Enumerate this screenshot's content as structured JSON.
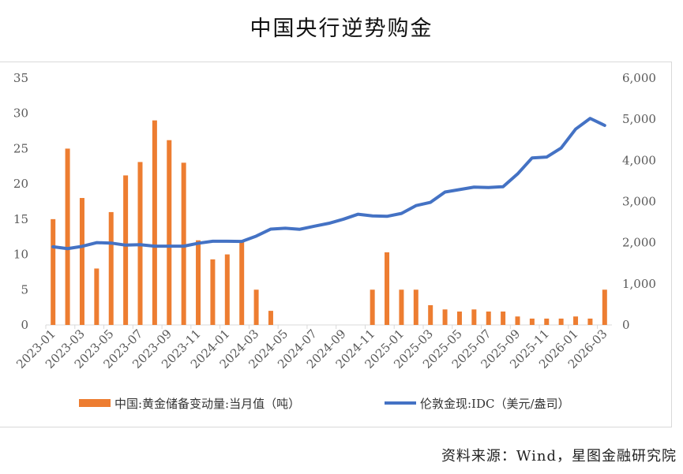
{
  "title": "中国央行逆势购金",
  "source": "资料来源：Wind，星图金融研究院",
  "chart_data": {
    "type": "bar+line",
    "title": "中国央行逆势购金",
    "x": [
      "2023-01",
      "2023-02",
      "2023-03",
      "2023-04",
      "2023-05",
      "2023-06",
      "2023-07",
      "2023-08",
      "2023-09",
      "2023-10",
      "2023-11",
      "2023-12",
      "2024-01",
      "2024-02",
      "2024-03",
      "2024-04",
      "2024-05",
      "2024-06",
      "2024-07",
      "2024-08",
      "2024-09",
      "2024-10",
      "2024-11",
      "2024-12",
      "2025-01",
      "2025-02",
      "2025-03",
      "2025-04",
      "2025-05",
      "2025-06",
      "2025-07",
      "2025-08",
      "2025-09",
      "2025-10",
      "2025-11",
      "2025-12",
      "2026-01",
      "2026-02",
      "2026-03"
    ],
    "x_tick_labels": [
      "2023-01",
      "2023-03",
      "2023-05",
      "2023-07",
      "2023-09",
      "2023-11",
      "2024-01",
      "2024-03",
      "2024-05",
      "2024-07",
      "2024-09",
      "2024-11",
      "2025-01",
      "2025-03",
      "2025-05",
      "2025-07",
      "2025-09",
      "2025-11",
      "2026-01",
      "2026-03"
    ],
    "series": [
      {
        "name": "中国:黄金储备变动量:当月值（吨）",
        "type": "bar",
        "axis": "left",
        "color": "#ED7D31",
        "values": [
          15,
          25,
          18,
          8,
          16,
          21.2,
          23.1,
          29,
          26.2,
          23,
          12,
          9.3,
          10,
          12,
          5,
          2,
          0,
          0,
          0,
          0,
          0,
          0,
          5,
          10.3,
          5,
          5,
          2.8,
          2.2,
          1.9,
          2.2,
          1.9,
          1.9,
          1.2,
          0.9,
          0.9,
          0.9,
          1.2,
          0.9,
          5
        ]
      },
      {
        "name": "伦敦金现:IDC（美元/盎司）",
        "type": "line",
        "axis": "right",
        "color": "#4472C4",
        "values": [
          1900,
          1855,
          1910,
          2000,
          1990,
          1940,
          1950,
          1915,
          1915,
          1915,
          1985,
          2035,
          2035,
          2030,
          2160,
          2330,
          2350,
          2325,
          2400,
          2470,
          2570,
          2690,
          2650,
          2640,
          2710,
          2900,
          2980,
          3230,
          3290,
          3350,
          3340,
          3360,
          3670,
          4060,
          4080,
          4300,
          4760,
          5020,
          4850
        ]
      }
    ],
    "left_axis": {
      "ylim": [
        0,
        35
      ],
      "ticks": [
        "0",
        "5",
        "10",
        "15",
        "20",
        "25",
        "30",
        "35"
      ]
    },
    "right_axis": {
      "ylim": [
        0,
        6000
      ],
      "ticks": [
        "0",
        "1,000",
        "2,000",
        "3,000",
        "4,000",
        "5,000",
        "6,000"
      ]
    },
    "legend": "bottom",
    "grid": false
  }
}
